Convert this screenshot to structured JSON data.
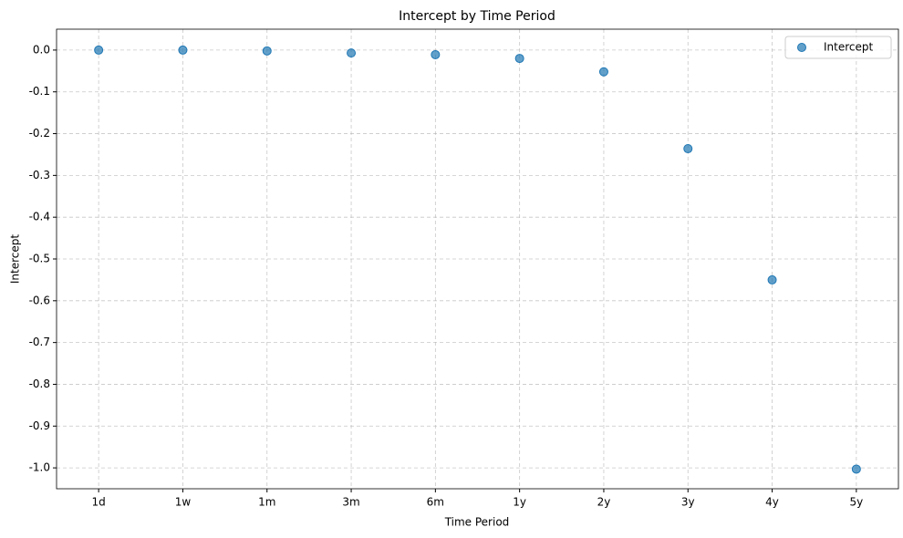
{
  "chart_data": {
    "type": "scatter",
    "title": "Intercept by Time Period",
    "x_label": "Time Period",
    "y_label": "Intercept",
    "categories": [
      "1d",
      "1w",
      "1m",
      "3m",
      "6m",
      "1y",
      "2y",
      "3y",
      "4y",
      "5y"
    ],
    "series": [
      {
        "name": "Intercept",
        "color": "#1f77b4",
        "values": [
          0.0,
          0.0,
          -0.002,
          -0.007,
          -0.011,
          -0.02,
          -0.052,
          -0.236,
          -0.55,
          -1.003
        ]
      }
    ],
    "ylim": [
      -1.05,
      0.05
    ],
    "yticks": [
      {
        "value": 0,
        "label": "0.0"
      },
      -0.1,
      -0.2,
      -0.3,
      -0.4,
      -0.5,
      -0.6,
      -0.7,
      -0.8,
      -0.9,
      {
        "value": -1,
        "label": "-1.0"
      }
    ],
    "grid": true,
    "legend": "upper right"
  }
}
